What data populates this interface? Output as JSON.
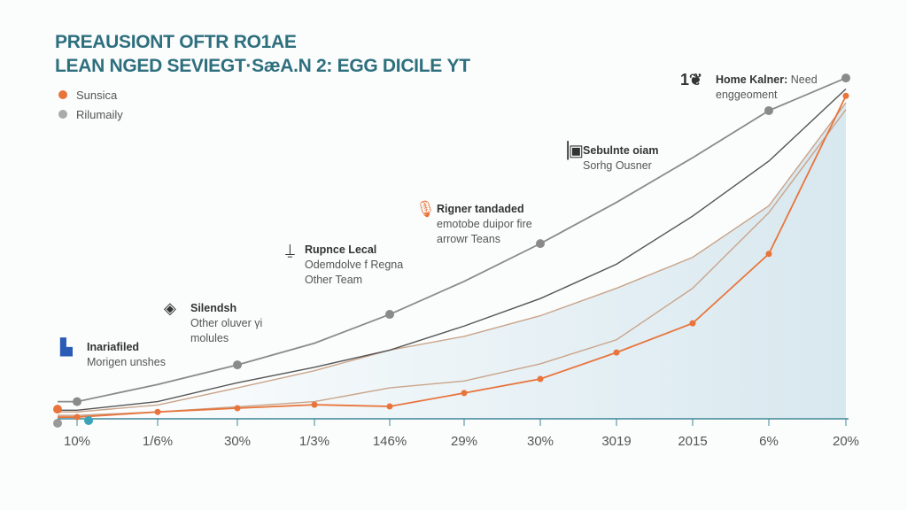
{
  "chart_data": {
    "type": "line",
    "title_lines": [
      "PREAUSIONT OFTR RO1AE",
      "LEAN NGED SEVIEGT·SæA.N 2: EGG DICILE ΥT"
    ],
    "categories": [
      "10%",
      "1/6%",
      "30%",
      "1/3%",
      "146%",
      "29%",
      "30%",
      "3019",
      "2015",
      "6%",
      "20%"
    ],
    "series": [
      {
        "name": "Sunsica",
        "color": "#e8743b",
        "values": [
          0.5,
          2,
          3.1,
          4.1,
          3.6,
          7.5,
          11.6,
          19.3,
          27.8,
          48,
          94
        ],
        "markers": true
      },
      {
        "name": "Rilumaily",
        "color": "#8a8a8a",
        "values": [
          5,
          10,
          15.7,
          22,
          30.4,
          40,
          51,
          63,
          76,
          89.7,
          99.2
        ],
        "markers": true
      },
      {
        "color": "#555555",
        "values": [
          2.5,
          5,
          10.5,
          15,
          20,
          27,
          35,
          45,
          59,
          75,
          96
        ]
      },
      {
        "color": "#c9a48a",
        "values": [
          2,
          4,
          9,
          14,
          20,
          24,
          30,
          38,
          47,
          62,
          92
        ]
      },
      {
        "color": "#c9a48a",
        "values": [
          1,
          2,
          3.5,
          5,
          9,
          11,
          16,
          23,
          38,
          60,
          90
        ]
      }
    ],
    "area_fill_color": "#d8e8ef",
    "axis_color": "#3f8797",
    "ylim": [
      0,
      100
    ],
    "grid": false,
    "legend_placement": "top-left",
    "annotations": [
      {
        "icon": "badge-icon",
        "icon_color": "#2a5bb5",
        "title": "Inariafiled",
        "text": [
          "Morigen unshes"
        ]
      },
      {
        "icon": "layers-icon",
        "icon_color": "#333333",
        "title": "Silendsh",
        "text": [
          "Other oluver γi",
          "molules"
        ]
      },
      {
        "icon": "pin-icon",
        "icon_color": "#333333",
        "title": "Rupnce Lecal",
        "text": [
          "Odemdolve f Regna",
          "Other Team"
        ]
      },
      {
        "icon": "microphone-icon",
        "icon_color": "#e8743b",
        "title": "Rigner tandaded",
        "text": [
          "emotobe duipor fire",
          "arrowr Teans"
        ]
      },
      {
        "icon": "document-icon",
        "icon_color": "#333333",
        "title": "Sebulnte oiam",
        "text": [
          "Sorhg Ousner"
        ]
      },
      {
        "icon": "leaf-icon",
        "icon_color": "#333333",
        "icon_text": "1",
        "title": "Home Kalner:",
        "title_rest": "Need",
        "text": [
          "enggeoment"
        ]
      }
    ]
  }
}
